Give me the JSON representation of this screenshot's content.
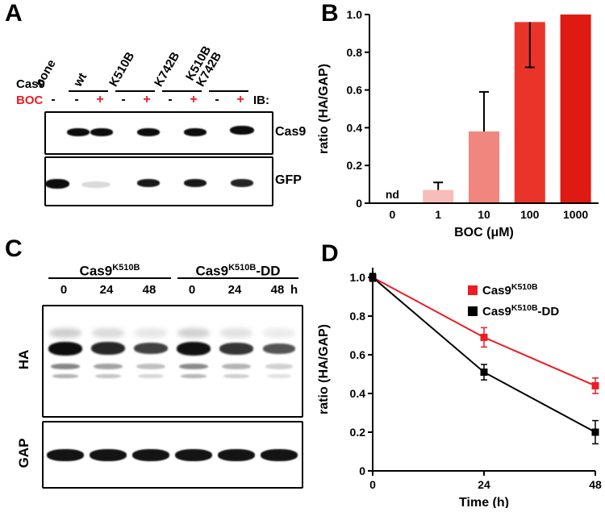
{
  "colors": {
    "accent_red": "#ed1c24"
  },
  "panels": {
    "A": {
      "label": "A",
      "row_labels": {
        "cas9": "Cas9",
        "boc": "BOC",
        "ib": "IB:"
      },
      "constructs": [
        {
          "name": "none"
        },
        {
          "name": "wt"
        },
        {
          "name": "K510B"
        },
        {
          "name": "K742B"
        },
        {
          "name": "K510B",
          "name2": "K742B"
        }
      ],
      "boc_signs": [
        "-",
        "-",
        "+",
        "-",
        "+",
        "-",
        "+",
        "-",
        "+"
      ],
      "blot_labels": [
        "Cas9",
        "GFP"
      ]
    },
    "B": {
      "label": "B"
    },
    "C": {
      "label": "C",
      "groups": [
        {
          "base": "Cas9",
          "sup": "K510B",
          "suffix": ""
        },
        {
          "base": "Cas9",
          "sup": "K510B",
          "suffix": "-DD"
        }
      ],
      "time_labels": [
        "0",
        "24",
        "48",
        "0",
        "24",
        "48"
      ],
      "time_unit": "h",
      "blot_labels": [
        "HA",
        "GAP"
      ]
    },
    "D": {
      "label": "D"
    }
  },
  "chart_data": [
    {
      "id": "B",
      "type": "bar",
      "title": "",
      "xlabel": "BOC (μM)",
      "ylabel": "ratio (HA/GAP)",
      "categories": [
        "0",
        "1",
        "10",
        "100",
        "1000"
      ],
      "values": [
        null,
        0.07,
        0.38,
        0.96,
        1.0
      ],
      "err_up": [
        0,
        0.04,
        0.21,
        0,
        0
      ],
      "err_down": [
        0,
        0,
        0,
        0.24,
        0
      ],
      "bar_colors": [
        null,
        "#f7bdb9",
        "#f0867d",
        "#e93529",
        "#de1a13"
      ],
      "annotations": [
        {
          "text": "nd",
          "category_index": 0
        }
      ],
      "ylim": [
        0,
        1.0
      ],
      "yticks": [
        0,
        0.2,
        0.4,
        0.6,
        0.8,
        1.0
      ],
      "yticklabels": [
        "0",
        "0.2",
        "0.4",
        "0.6",
        "0.8",
        "1.0"
      ],
      "grid": false,
      "legend_position": "none"
    },
    {
      "id": "D",
      "type": "line",
      "title": "",
      "xlabel": "Time (h)",
      "ylabel": "ratio (HA/GAP)",
      "x": [
        0,
        24,
        48
      ],
      "xticklabels": [
        "0",
        "24",
        "48"
      ],
      "series": [
        {
          "name_parts": [
            {
              "t": "Cas9"
            },
            {
              "t": "K510B",
              "sup": true
            }
          ],
          "color": "#ed1c24",
          "values": [
            1.0,
            0.69,
            0.44
          ],
          "errors": [
            0.02,
            0.05,
            0.04
          ]
        },
        {
          "name_parts": [
            {
              "t": "Cas9"
            },
            {
              "t": "K510B",
              "sup": true
            },
            {
              "t": "-DD"
            }
          ],
          "color": "#000000",
          "values": [
            1.0,
            0.51,
            0.2
          ],
          "errors": [
            0.02,
            0.04,
            0.06
          ]
        }
      ],
      "ylim": [
        0,
        1.05
      ],
      "yticks": [
        0,
        0.2,
        0.4,
        0.6,
        0.8,
        1.0
      ],
      "yticklabels": [
        "0",
        "0.2",
        "0.4",
        "0.6",
        "0.8",
        "1.0"
      ],
      "grid": false,
      "legend_position": "top-right"
    }
  ]
}
